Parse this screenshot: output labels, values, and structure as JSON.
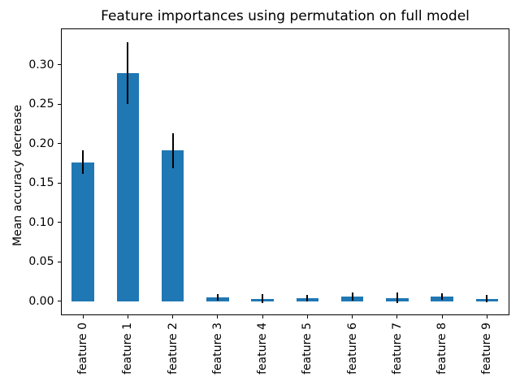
{
  "chart_data": {
    "type": "bar",
    "title": "Feature importances using permutation on full model",
    "ylabel": "Mean accuracy decrease",
    "xlabel": "",
    "categories": [
      "feature 0",
      "feature 1",
      "feature 2",
      "feature 3",
      "feature 4",
      "feature 5",
      "feature 6",
      "feature 7",
      "feature 8",
      "feature 9"
    ],
    "values": [
      0.176,
      0.289,
      0.191,
      0.005,
      0.003,
      0.004,
      0.006,
      0.004,
      0.006,
      0.003
    ],
    "error_bars": [
      0.015,
      0.039,
      0.022,
      0.004,
      0.006,
      0.004,
      0.005,
      0.007,
      0.004,
      0.005
    ],
    "yticks": [
      0.0,
      0.05,
      0.1,
      0.15,
      0.2,
      0.25,
      0.3
    ],
    "ytick_labels": [
      "0.00",
      "0.05",
      "0.10",
      "0.15",
      "0.20",
      "0.25",
      "0.30"
    ],
    "ylim": [
      -0.018,
      0.346
    ],
    "bar_width_fraction": 0.5,
    "x_tick_rotation": 90,
    "grid": false,
    "legend_position": "none",
    "bar_color": "#1f77b4",
    "error_color": "#000000",
    "axis_color": "#000000",
    "background_color": "#ffffff"
  }
}
